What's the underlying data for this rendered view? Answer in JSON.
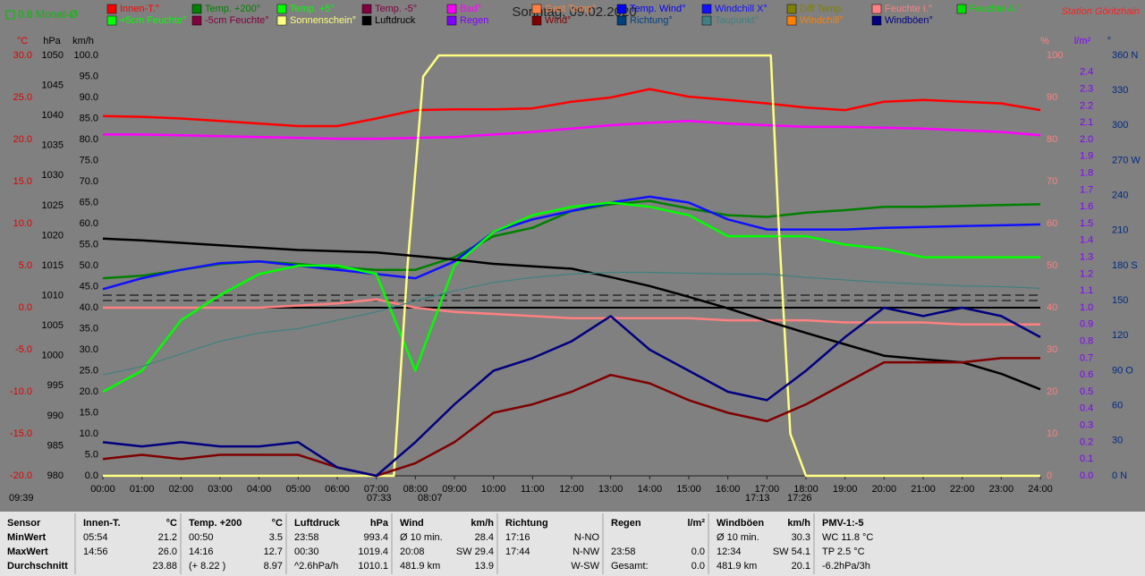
{
  "chart_data": {
    "type": "line",
    "title": "Sonntag, 09.02.2020",
    "station": "Station Göritzhain",
    "month_average": "0.8 Monat-Ø",
    "x": [
      0,
      1,
      2,
      3,
      4,
      5,
      6,
      7,
      8,
      9,
      10,
      11,
      12,
      13,
      14,
      15,
      16,
      17,
      18,
      19,
      20,
      21,
      22,
      23,
      24
    ],
    "xlim": [
      0,
      24
    ],
    "xticks": [
      {
        "value": 0,
        "label": "00:00"
      },
      {
        "value": 1,
        "label": "01:00"
      },
      {
        "value": 2,
        "label": "02:00"
      },
      {
        "value": 3,
        "label": "03:00"
      },
      {
        "value": 4,
        "label": "04:00"
      },
      {
        "value": 5,
        "label": "05:00"
      },
      {
        "value": 6,
        "label": "06:00"
      },
      {
        "value": 7,
        "label": "07:00"
      },
      {
        "value": 8,
        "label": "08:00"
      },
      {
        "value": 9,
        "label": "09:00"
      },
      {
        "value": 10,
        "label": "10:00"
      },
      {
        "value": 11,
        "label": "11:00"
      },
      {
        "value": 12,
        "label": "12:00"
      },
      {
        "value": 13,
        "label": "13:00"
      },
      {
        "value": 14,
        "label": "14:00"
      },
      {
        "value": 15,
        "label": "15:00"
      },
      {
        "value": 16,
        "label": "16:00"
      },
      {
        "value": 17,
        "label": "17:00"
      },
      {
        "value": 18,
        "label": "18:00"
      },
      {
        "value": 19,
        "label": "19:00"
      },
      {
        "value": 20,
        "label": "20:00"
      },
      {
        "value": 21,
        "label": "21:00"
      },
      {
        "value": 22,
        "label": "22:00"
      },
      {
        "value": 23,
        "label": "23:00"
      },
      {
        "value": 24,
        "label": "24:00"
      }
    ],
    "axes": {
      "temp": {
        "unit": "°C",
        "color": "#e00000",
        "ylim": [
          -20,
          30
        ],
        "yticks": [
          {
            "value": 30,
            "label": "30.0"
          },
          {
            "value": 25,
            "label": "25.0"
          },
          {
            "value": 20,
            "label": "20.0"
          },
          {
            "value": 15,
            "label": "15.0"
          },
          {
            "value": 10,
            "label": "10.0"
          },
          {
            "value": 5,
            "label": "5.0"
          },
          {
            "value": 0,
            "label": "0.0"
          },
          {
            "value": -5,
            "label": "-5.0"
          },
          {
            "value": -10,
            "label": "-10.0"
          },
          {
            "value": -15,
            "label": "-15.0"
          },
          {
            "value": -20,
            "label": "-20.0"
          }
        ]
      },
      "pressure": {
        "unit": "hPa",
        "color": "#000000",
        "ylim": [
          980,
          1050
        ],
        "yticks": [
          1050,
          1045,
          1040,
          1035,
          1030,
          1025,
          1020,
          1015,
          1010,
          1005,
          1000,
          995,
          990,
          985,
          980
        ]
      },
      "speed": {
        "unit": "km/h",
        "color": "#000000",
        "ylim": [
          0,
          100
        ],
        "yticks": [
          {
            "value": 100,
            "label": "100.0"
          },
          {
            "value": 95,
            "label": "95.0"
          },
          {
            "value": 90,
            "label": "90.0"
          },
          {
            "value": 85,
            "label": "85.0"
          },
          {
            "value": 80,
            "label": "80.0"
          },
          {
            "value": 75,
            "label": "75.0"
          },
          {
            "value": 70,
            "label": "70.0"
          },
          {
            "value": 65,
            "label": "65.0"
          },
          {
            "value": 60,
            "label": "60.0"
          },
          {
            "value": 55,
            "label": "55.0"
          },
          {
            "value": 50,
            "label": "50.0"
          },
          {
            "value": 45,
            "label": "45.0"
          },
          {
            "value": 40,
            "label": "40.0"
          },
          {
            "value": 35,
            "label": "35.0"
          },
          {
            "value": 30,
            "label": "30.0"
          },
          {
            "value": 25,
            "label": "25.0"
          },
          {
            "value": 20,
            "label": "20.0"
          },
          {
            "value": 15,
            "label": "15.0"
          },
          {
            "value": 10,
            "label": "10.0"
          },
          {
            "value": 5,
            "label": "5.0"
          },
          {
            "value": 0,
            "label": "0.0"
          }
        ]
      },
      "percent": {
        "unit": "%",
        "color": "#ff8080",
        "ylim": [
          0,
          100
        ],
        "yticks": [
          100,
          90,
          80,
          70,
          60,
          50,
          40,
          30,
          20,
          10,
          0
        ]
      },
      "rain": {
        "unit": "l/m²",
        "color": "#8000ff",
        "ylim": [
          0,
          2.5
        ],
        "yticks": [
          {
            "value": 2.4,
            "label": "2.4"
          },
          {
            "value": 2.3,
            "label": "2.3"
          },
          {
            "value": 2.2,
            "label": "2.2"
          },
          {
            "value": 2.1,
            "label": "2.1"
          },
          {
            "value": 2.0,
            "label": "2.0"
          },
          {
            "value": 1.9,
            "label": "1.9"
          },
          {
            "value": 1.8,
            "label": "1.8"
          },
          {
            "value": 1.7,
            "label": "1.7"
          },
          {
            "value": 1.6,
            "label": "1.6"
          },
          {
            "value": 1.5,
            "label": "1.5"
          },
          {
            "value": 1.4,
            "label": "1.4"
          },
          {
            "value": 1.3,
            "label": "1.3"
          },
          {
            "value": 1.2,
            "label": "1.2"
          },
          {
            "value": 1.1,
            "label": "1.1"
          },
          {
            "value": 1.0,
            "label": "1.0"
          },
          {
            "value": 0.9,
            "label": "0.9"
          },
          {
            "value": 0.8,
            "label": "0.8"
          },
          {
            "value": 0.7,
            "label": "0.7"
          },
          {
            "value": 0.6,
            "label": "0.6"
          },
          {
            "value": 0.5,
            "label": "0.5"
          },
          {
            "value": 0.4,
            "label": "0.4"
          },
          {
            "value": 0.3,
            "label": "0.3"
          },
          {
            "value": 0.2,
            "label": "0.2"
          },
          {
            "value": 0.1,
            "label": "0.1"
          },
          {
            "value": 0,
            "label": "0.0"
          }
        ]
      },
      "direction": {
        "unit": "°",
        "color": "#002a80",
        "ylim": [
          0,
          360
        ],
        "yticks": [
          {
            "value": 360,
            "label": "360 N"
          },
          {
            "value": 330,
            "label": "330"
          },
          {
            "value": 300,
            "label": "300"
          },
          {
            "value": 270,
            "label": "270 W"
          },
          {
            "value": 240,
            "label": "240"
          },
          {
            "value": 210,
            "label": "210"
          },
          {
            "value": 180,
            "label": "180 S"
          },
          {
            "value": 150,
            "label": "150"
          },
          {
            "value": 120,
            "label": "120"
          },
          {
            "value": 90,
            "label": "90 O"
          },
          {
            "value": 60,
            "label": "60"
          },
          {
            "value": 30,
            "label": "30"
          },
          {
            "value": 0,
            "label": "0 N"
          }
        ]
      }
    },
    "series": [
      {
        "name": "Innen-T.°",
        "color": "#ff0000",
        "axis": "temp",
        "values": [
          22.8,
          22.7,
          22.5,
          22.2,
          21.9,
          21.6,
          21.6,
          22.5,
          23.5,
          23.6,
          23.6,
          23.7,
          24.5,
          25.0,
          26.0,
          25.1,
          24.7,
          24.3,
          23.8,
          23.5,
          24.5,
          24.7,
          24.5,
          24.3,
          23.5
        ]
      },
      {
        "name": "Temp. +200°",
        "color": "#008000",
        "axis": "temp",
        "values": [
          3.5,
          3.8,
          4.5,
          5.2,
          5.5,
          5.2,
          4.8,
          4.5,
          4.5,
          6.0,
          8.5,
          9.5,
          11.5,
          12.3,
          12.7,
          11.8,
          11.0,
          10.8,
          11.3,
          11.6,
          12.0,
          12.0,
          12.1,
          12.2,
          12.3
        ]
      },
      {
        "name": "Temp. +5°",
        "color": "#00ff00"
      },
      {
        "name": "Temp. -5°",
        "color": "#800040"
      },
      {
        "name": "Bad°",
        "color": "#ff00ff",
        "axis": "temp",
        "values": [
          20.6,
          20.6,
          20.5,
          20.4,
          20.3,
          20.2,
          20.1,
          20.1,
          20.2,
          20.3,
          20.6,
          20.9,
          21.3,
          21.7,
          22.0,
          22.2,
          21.9,
          21.7,
          21.5,
          21.5,
          21.4,
          21.3,
          21.1,
          20.9,
          20.5
        ]
      },
      {
        "name": "Gast Temp°",
        "color": "#ff8040"
      },
      {
        "name": "Temp. Wind°",
        "color": "#0000ff"
      },
      {
        "name": "Windchill X°",
        "color": "#1010ff",
        "axis": "temp",
        "values": [
          2.2,
          3.5,
          4.5,
          5.3,
          5.5,
          5.0,
          4.5,
          4.0,
          3.5,
          5.5,
          9.0,
          10.5,
          11.5,
          12.5,
          13.2,
          12.5,
          10.5,
          9.3,
          9.3,
          9.3,
          9.5,
          9.6,
          9.7,
          9.8,
          9.9
        ]
      },
      {
        "name": "Diff Temp.",
        "color": "#808000"
      },
      {
        "name": "Feuchte I.°",
        "color": "#ff8080",
        "axis": "percent",
        "values": [
          40,
          40,
          40,
          40,
          40,
          40.5,
          41,
          42,
          40,
          39,
          38.5,
          38,
          37.5,
          37.5,
          37.5,
          37.5,
          37,
          37,
          37,
          36.5,
          36.5,
          36.5,
          36,
          36,
          36
        ]
      },
      {
        "name": "Feuchte A.°",
        "color": "#00e000"
      },
      {
        "name": "+5cm Feuchte°",
        "color": "#00ff00",
        "axis": "percent",
        "values": [
          20,
          25,
          37,
          43,
          48,
          50,
          50,
          48,
          25,
          50,
          58,
          62,
          64,
          65,
          64,
          62,
          57,
          57,
          57,
          55,
          54,
          52,
          52,
          52,
          52
        ]
      },
      {
        "name": "-5cm Feuchte°",
        "color": "#800040"
      },
      {
        "name": "Sonnenschein°",
        "color": "#ffff80",
        "axis": "percent",
        "x": [
          0,
          7.45,
          7.8,
          8.2,
          8.6,
          17.1,
          17.3,
          17.6,
          18,
          24
        ],
        "values": [
          0,
          0,
          50,
          95,
          100,
          100,
          60,
          10,
          0,
          0
        ]
      },
      {
        "name": "Luftdruck",
        "color": "#000000",
        "axis": "pressure",
        "values": [
          1019.5,
          1019.2,
          1018.8,
          1018.4,
          1018.0,
          1017.6,
          1017.4,
          1017.2,
          1016.6,
          1016.0,
          1015.3,
          1014.9,
          1014.5,
          1013.1,
          1011.6,
          1009.8,
          1007.9,
          1005.8,
          1003.8,
          1001.9,
          1000.0,
          999.4,
          998.9,
          997.0,
          994.4
        ]
      },
      {
        "name": "Regen",
        "color": "#8000ff"
      },
      {
        "name": "Wind°",
        "color": "#800000",
        "axis": "speed",
        "values": [
          4,
          5,
          4,
          5,
          5,
          5,
          2,
          0,
          3,
          8,
          15,
          17,
          20,
          24,
          22,
          18,
          15,
          13,
          17,
          22,
          27,
          27,
          27,
          28,
          28
        ]
      },
      {
        "name": "Richtung°",
        "color": "#004080"
      },
      {
        "name": "Taupunkt°",
        "color": "#408080",
        "axis": "temp",
        "values": [
          -8,
          -7,
          -5.5,
          -4,
          -3,
          -2.5,
          -1.5,
          -0.5,
          0.8,
          2,
          3,
          3.6,
          4,
          4.2,
          4.2,
          4.1,
          4,
          4,
          3.6,
          3.3,
          3,
          2.8,
          2.6,
          2.5,
          2.3
        ]
      },
      {
        "name": "Windchill°",
        "color": "#ff8000"
      },
      {
        "name": "Windböen°",
        "color": "#000080",
        "axis": "speed",
        "values": [
          8,
          7,
          8,
          7,
          7,
          8,
          2,
          0,
          8,
          17,
          25,
          28,
          32,
          38,
          30,
          25,
          20,
          18,
          25,
          33,
          40,
          38,
          40,
          38,
          33
        ]
      }
    ],
    "annotations": [
      "09:39",
      "07:33",
      "08:07",
      "17:13",
      "17:26"
    ]
  },
  "stats": {
    "row_labels": [
      "Sensor",
      "MinWert",
      "MaxWert",
      "Durchschnitt"
    ],
    "groups": [
      {
        "title": "Innen-T.",
        "unit": "°C",
        "rows": [
          [
            "05:54",
            "21.2"
          ],
          [
            "14:56",
            "26.0"
          ],
          [
            "23.88"
          ]
        ]
      },
      {
        "title": "Temp. +200",
        "unit": "°C",
        "rows": [
          [
            "00:50",
            "3.5"
          ],
          [
            "14:16",
            "12.7"
          ],
          [
            "(+ 8.22 )",
            "8.97"
          ]
        ]
      },
      {
        "title": "Luftdruck",
        "unit": "hPa",
        "rows": [
          [
            "23:58",
            "993.4"
          ],
          [
            "00:30",
            "1019.4"
          ],
          [
            "^2.6hPa/h",
            "1010.1"
          ]
        ]
      },
      {
        "title": "Wind",
        "unit": "km/h",
        "rows": [
          [
            "Ø 10 min.",
            "28.4"
          ],
          [
            "20:08",
            "SW 29.4"
          ],
          [
            "481.9 km",
            "13.9"
          ]
        ]
      },
      {
        "title": "Richtung",
        "rows": [
          [
            "17:16",
            "N-NO"
          ],
          [
            "17:44",
            "N-NW"
          ],
          [
            "W-SW"
          ]
        ]
      },
      {
        "title": "Regen",
        "unit": "l/m²",
        "rows": [
          [],
          [
            "23:58",
            "0.0"
          ],
          [
            "Gesamt:",
            "0.0"
          ]
        ]
      },
      {
        "title": "Windböen",
        "unit": "km/h",
        "rows": [
          [
            "Ø 10 min.",
            "30.3"
          ],
          [
            "12:34",
            "SW 54.1"
          ],
          [
            "481.9 km",
            "20.1"
          ]
        ]
      },
      {
        "title": "PMV-1:-5",
        "rows": [
          [
            "WC 11.8 °C"
          ],
          [
            "TP 2.5 °C"
          ],
          [
            "-6.2hPa/3h"
          ]
        ]
      }
    ]
  }
}
